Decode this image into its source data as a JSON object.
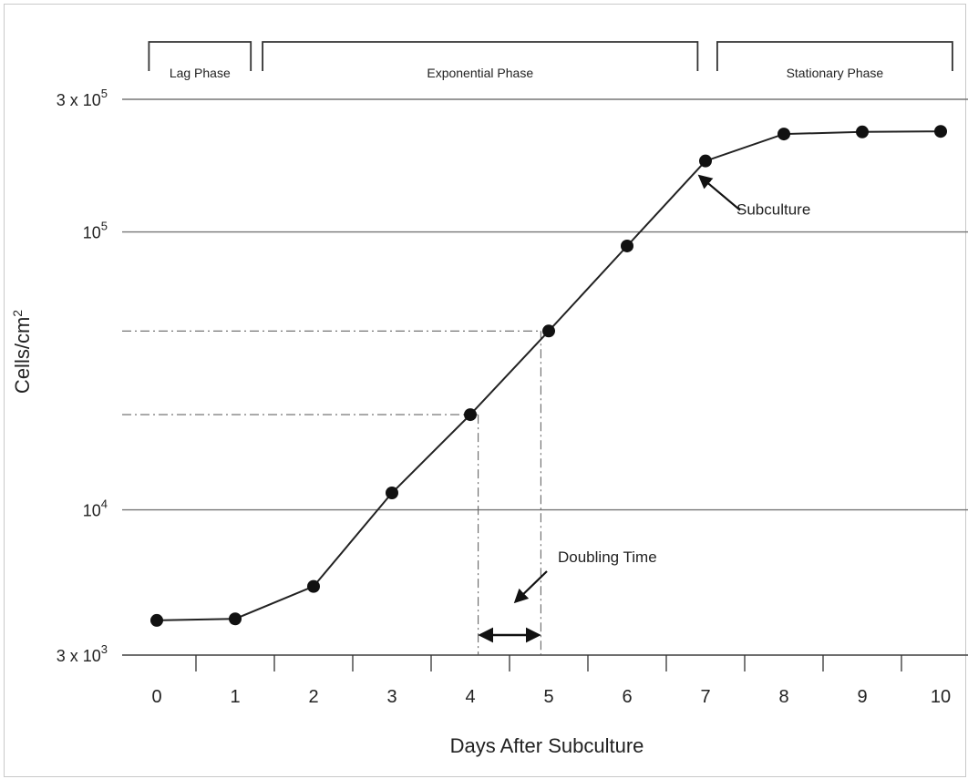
{
  "chart_data": {
    "type": "line",
    "title": "",
    "xlabel": "Days After Subculture",
    "ylabel": "Cells/cm²",
    "ylabel_base": "Cells/cm",
    "ylabel_sup": "2",
    "xlim": [
      0,
      10
    ],
    "ylim": [
      3000,
      300000
    ],
    "yscale": "log",
    "grid": "horizontal",
    "x_ticks": [
      0,
      1,
      2,
      3,
      4,
      5,
      6,
      7,
      8,
      9,
      10
    ],
    "x_tick_labels": [
      "0",
      "1",
      "2",
      "3",
      "4",
      "5",
      "6",
      "7",
      "8",
      "9",
      "10"
    ],
    "y_ticks": [
      {
        "value": 3000,
        "base": "3 x 10",
        "exp": "3"
      },
      {
        "value": 10000,
        "base": "10",
        "exp": "4"
      },
      {
        "value": 100000,
        "base": "10",
        "exp": "5"
      },
      {
        "value": 300000,
        "base": "3 x 10",
        "exp": "5"
      }
    ],
    "series": [
      {
        "x": [
          0,
          1,
          2,
          3,
          4,
          5,
          6,
          7,
          8,
          9,
          10
        ],
        "y": [
          4000,
          4050,
          5300,
          11500,
          22000,
          44000,
          89000,
          180000,
          225000,
          229000,
          230000
        ]
      }
    ],
    "phases": [
      {
        "label": "Lag Phase",
        "x_start": -0.1,
        "x_end": 1.2
      },
      {
        "label": "Exponential Phase",
        "x_start": 1.35,
        "x_end": 6.9
      },
      {
        "label": "Stationary Phase",
        "x_start": 7.15,
        "x_end": 10.15
      }
    ],
    "annotations": [
      {
        "text": "Subculture",
        "point_x": 7,
        "point_y": 180000
      },
      {
        "text": "Doubling Time",
        "x_start": 4.1,
        "x_end": 4.9,
        "y_low": 22000,
        "y_high": 44000
      }
    ]
  }
}
